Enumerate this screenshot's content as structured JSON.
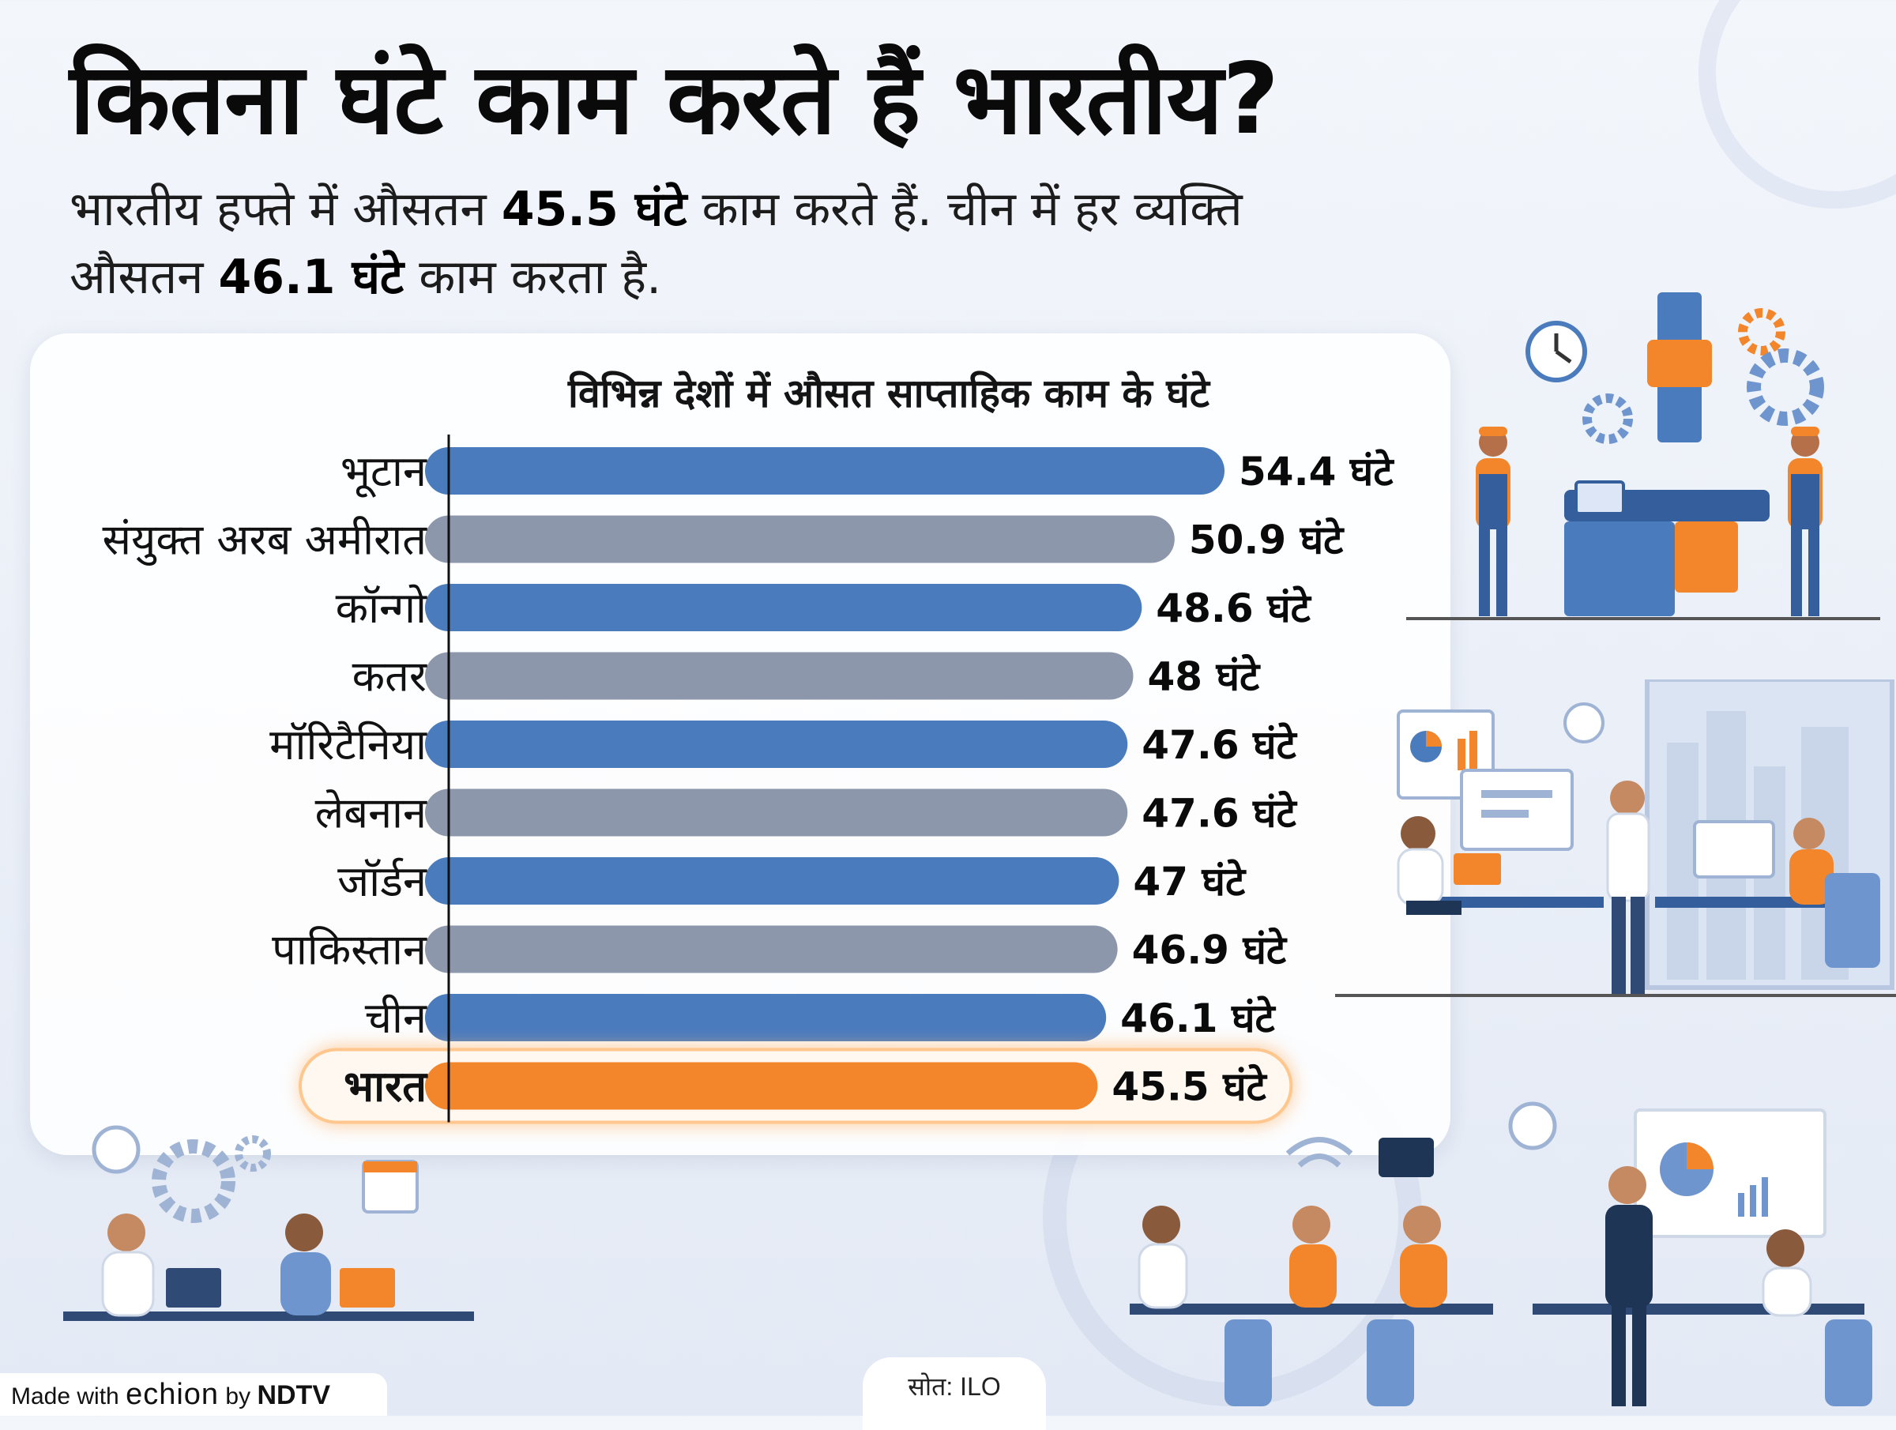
{
  "header": {
    "title": "कितना घंटे काम करते हैं भारतीय?",
    "subtitle_line1_pre": "भारतीय हफ्ते में औसतन ",
    "subtitle_line1_bold": "45.5 घंटे",
    "subtitle_line1_post": " काम करते हैं. चीन में हर व्यक्ति",
    "subtitle_line2_pre": "औसतन ",
    "subtitle_line2_bold": "46.1 घंटे",
    "subtitle_line2_post": " काम करता है."
  },
  "chart_data": {
    "type": "bar",
    "orientation": "horizontal",
    "title": "विभिन्न देशों में औसत साप्ताहिक काम के घंटे",
    "unit": "घंटे",
    "categories": [
      "भूटान",
      "संयुक्त अरब अमीरात",
      "कॉन्गो",
      "कतर",
      "मॉरिटैनिया",
      "लेबनान",
      "जॉर्डन",
      "पाकिस्तान",
      "चीन",
      "भारत"
    ],
    "values": [
      54.4,
      50.9,
      48.6,
      48,
      47.6,
      47.6,
      47,
      46.9,
      46.1,
      45.5
    ],
    "value_labels": [
      "54.4 घंटे",
      "50.9 घंटे",
      "48.6 घंटे",
      "48 घंटे",
      "47.6 घंटे",
      "47.6 घंटे",
      "47 घंटे",
      "46.9 घंटे",
      "46.1 घंटे",
      "45.5 घंटे"
    ],
    "highlight": "भारत",
    "colors": {
      "blue": "#4a7bbd",
      "gray": "#8c97ab",
      "highlight": "#f3862a"
    }
  },
  "footer": {
    "made_with": "Made with",
    "brand": "echion",
    "by": "by",
    "ndtv": "NDTV",
    "source": "सोत: ILO"
  }
}
